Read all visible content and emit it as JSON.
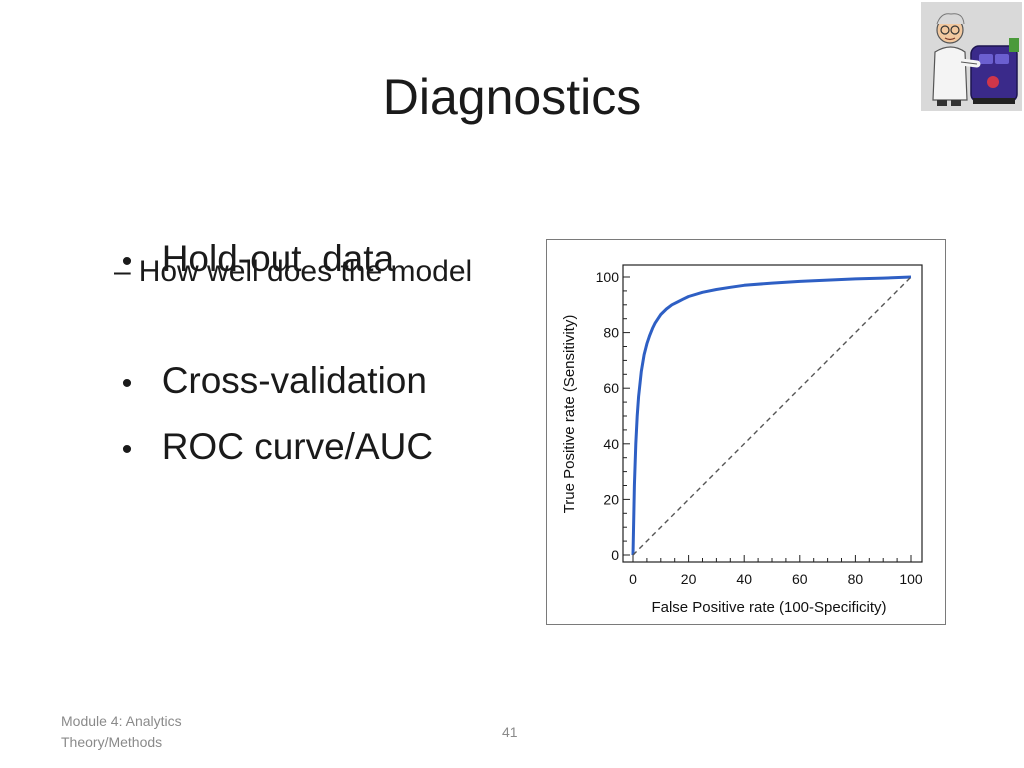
{
  "slide": {
    "title": "Diagnostics",
    "bullets": [
      {
        "label": "Hold-out  data"
      },
      {
        "label": "Cross-validation"
      },
      {
        "label": "ROC curve/AUC"
      }
    ],
    "sub_bullet": "How well does the model",
    "bullet_char": "•",
    "sub_bullet_char": "–",
    "clipart_icon": "scientist-clipart-icon"
  },
  "footer": {
    "course_line1": "Module 4: Analytics",
    "course_line2": "Theory/Methods",
    "page_number": "41"
  },
  "chart_data": {
    "type": "line",
    "xlabel": "False Positive rate (100-Specificity)",
    "ylabel": "True Positive rate (Sensitivity)",
    "xlim": [
      0,
      100
    ],
    "ylim": [
      0,
      100
    ],
    "x_ticks": [
      "0",
      "20",
      "40",
      "60",
      "80",
      "100"
    ],
    "y_ticks": [
      "0",
      "20",
      "40",
      "60",
      "80",
      "100"
    ],
    "grid": false,
    "series": [
      {
        "style": "solid",
        "color": "#2e5fc4",
        "x": [
          0,
          0.5,
          1,
          1.5,
          2,
          3,
          4,
          5,
          6,
          7,
          8,
          9,
          10,
          12,
          14,
          16,
          18,
          20,
          25,
          30,
          35,
          40,
          50,
          60,
          70,
          80,
          90,
          100
        ],
        "y": [
          0,
          25,
          40,
          50,
          57,
          66,
          72,
          76,
          79,
          81.5,
          83.5,
          85,
          86.5,
          88.5,
          90,
          91,
          92,
          93,
          94.5,
          95.5,
          96.3,
          97,
          97.8,
          98.4,
          98.9,
          99.3,
          99.6,
          100
        ]
      },
      {
        "style": "dashed",
        "color": "#555555",
        "x": [
          0,
          100
        ],
        "y": [
          0,
          100
        ]
      }
    ]
  }
}
